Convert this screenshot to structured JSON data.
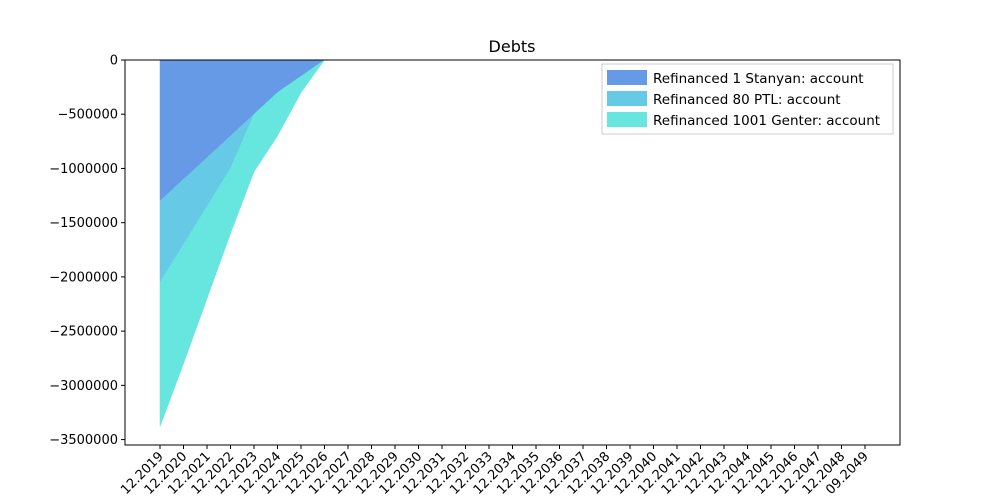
{
  "chart_data": {
    "type": "area",
    "title": "Debts",
    "xlabel": "",
    "ylabel": "",
    "x_ticks": [
      "12.2019",
      "12.2020",
      "12.2021",
      "12.2022",
      "12.2023",
      "12.2024",
      "12.2025",
      "12.2026",
      "12.2027",
      "12.2028",
      "12.2029",
      "12.2030",
      "12.2031",
      "12.2032",
      "12.2033",
      "12.2034",
      "12.2035",
      "12.2036",
      "12.2037",
      "12.2038",
      "12.2039",
      "12.2040",
      "12.2041",
      "12.2042",
      "12.2043",
      "12.2044",
      "12.2045",
      "12.2046",
      "12.2047",
      "12.2048",
      "09.2049"
    ],
    "y_ticks": [
      0,
      -500000,
      -1000000,
      -1500000,
      -2000000,
      -2500000,
      -3000000,
      -3500000
    ],
    "y_tick_labels": [
      "0",
      "−500000",
      "−1000000",
      "−1500000",
      "−2000000",
      "−2500000",
      "−3000000",
      "−3500000"
    ],
    "ylim": [
      -3550000,
      0
    ],
    "stacked": true,
    "legend_position": "top-right",
    "grid": false,
    "series": [
      {
        "name": "Refinanced 1 Stanyan: account",
        "color": "#6699e6",
        "values": [
          -1300000,
          -1100000,
          -900000,
          -700000,
          -500000,
          -300000,
          -150000,
          0,
          0
        ]
      },
      {
        "name": "Refinanced 80 PTL: account",
        "color": "#66c9e6",
        "values": [
          -750000,
          -600000,
          -450000,
          -300000,
          0,
          0,
          0,
          0,
          0
        ]
      },
      {
        "name": "Refinanced 1001 Genter: account",
        "color": "#66e6df",
        "values": [
          -1330000,
          -1100000,
          -850000,
          -600000,
          -530000,
          -400000,
          -150000,
          0,
          0
        ]
      }
    ]
  }
}
